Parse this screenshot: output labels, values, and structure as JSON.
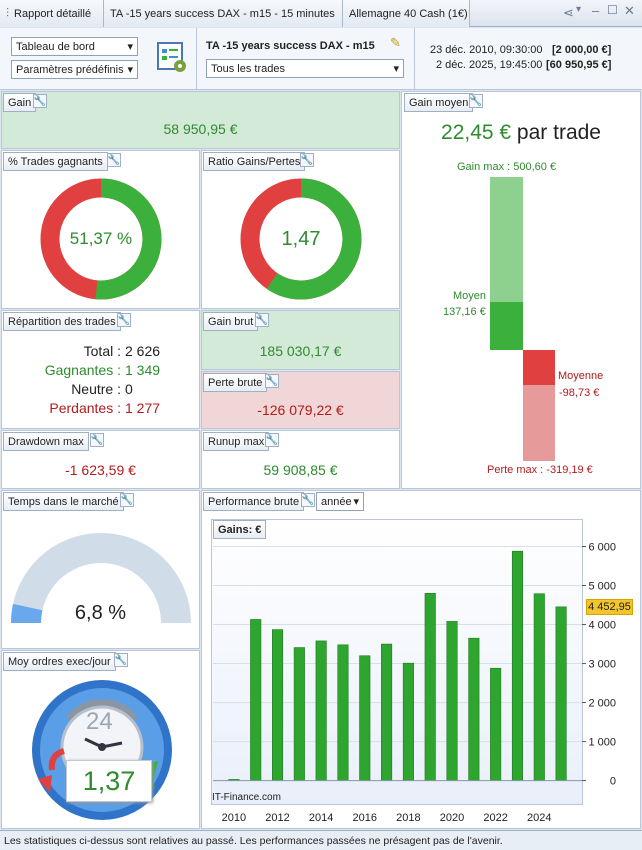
{
  "titlebar": {
    "tab_report": "Rapport détaillé",
    "tab_strategy": "TA -15 years success DAX - m15 - 15 minutes",
    "tab_instrument": "Allemagne 40 Cash (1€)"
  },
  "header": {
    "dashboard_select": "Tableau de bord",
    "params_select": "Paramètres prédéfinis",
    "strategy_title": "TA -15 years success DAX - m15",
    "trades_select": "Tous les trades",
    "start_date": "23 déc. 2010, 09:30:00",
    "start_capital": "[2 000,00 €]",
    "end_date": "2 déc. 2025, 19:45:00",
    "end_capital": "[60 950,95 €]"
  },
  "gain": {
    "label": "Gain",
    "value": "58 950,95 €"
  },
  "win_pct": {
    "label": "% Trades gagnants",
    "value": "51,37 %",
    "fraction": 0.5137
  },
  "ratio": {
    "label": "Ratio Gains/Pertes",
    "value": "1,47",
    "fraction": 0.595
  },
  "avg_gain": {
    "label": "Gain moyen",
    "value": "22,45 €",
    "suffix": " par trade",
    "max_label": "Gain max : 500,60 €",
    "avg_label": "Moyen",
    "avg_value": "137,16 €",
    "loss_avg_label": "Moyenne",
    "loss_avg_value": "-98,73 €",
    "loss_max_label": "Perte max : -319,19 €"
  },
  "distribution": {
    "label": "Répartition des trades",
    "total_label": "Total : ",
    "total": "2 626",
    "win_label": "Gagnantes : ",
    "win": "1 349",
    "neutral_label": "Neutre : ",
    "neutral": "0",
    "loss_label": "Perdantes : ",
    "loss": "1 277"
  },
  "gross_gain": {
    "label": "Gain brut",
    "value": "185 030,17 €"
  },
  "gross_loss": {
    "label": "Perte brute",
    "value": "-126 079,22 €"
  },
  "drawdown": {
    "label": "Drawdown max",
    "value": "-1 623,59 €"
  },
  "runup": {
    "label": "Runup max",
    "value": "59 908,85 €"
  },
  "time_in_market": {
    "label": "Temps dans le marché",
    "value": "6,8 %",
    "fraction": 0.068
  },
  "orders": {
    "label": "Moy ordres exec/jour",
    "value": "1,37",
    "clock_number": "24"
  },
  "performance": {
    "label": "Performance brute",
    "period_select": "année",
    "chart_label": "Gains: €",
    "watermark": "IT-Finance.com",
    "last_value_label": "4 452,95"
  },
  "chart_data": {
    "type": "bar",
    "title": "Performance brute",
    "ylabel": "Gains: €",
    "categories": [
      "2010",
      "2011",
      "2012",
      "2013",
      "2014",
      "2015",
      "2016",
      "2017",
      "2018",
      "2019",
      "2020",
      "2021",
      "2022",
      "2023",
      "2024",
      "2025"
    ],
    "values": [
      30,
      4130,
      3870,
      3410,
      3580,
      3480,
      3200,
      3500,
      3010,
      4800,
      4080,
      3650,
      2880,
      5880,
      4790,
      4452.95
    ],
    "x_tick_labels": [
      "2010",
      "2012",
      "2014",
      "2016",
      "2018",
      "2020",
      "2022",
      "2024"
    ],
    "y_ticks": [
      0,
      1000,
      2000,
      3000,
      4000,
      5000,
      6000
    ],
    "y_tick_labels": [
      "0",
      "1 000",
      "2 000",
      "3 000",
      "4 000",
      "5 000",
      "6 000"
    ],
    "ylim": [
      -600,
      6500
    ],
    "color": "#2ea52e"
  },
  "footer": {
    "text": "Les statistiques ci-dessus sont relatives au passé. Les performances passées ne présagent pas de l'avenir."
  },
  "colors": {
    "green": "#3cb03c",
    "red": "#e04040",
    "gain_bg": "#d4ead8",
    "loss_bg": "#f0d6d6"
  }
}
